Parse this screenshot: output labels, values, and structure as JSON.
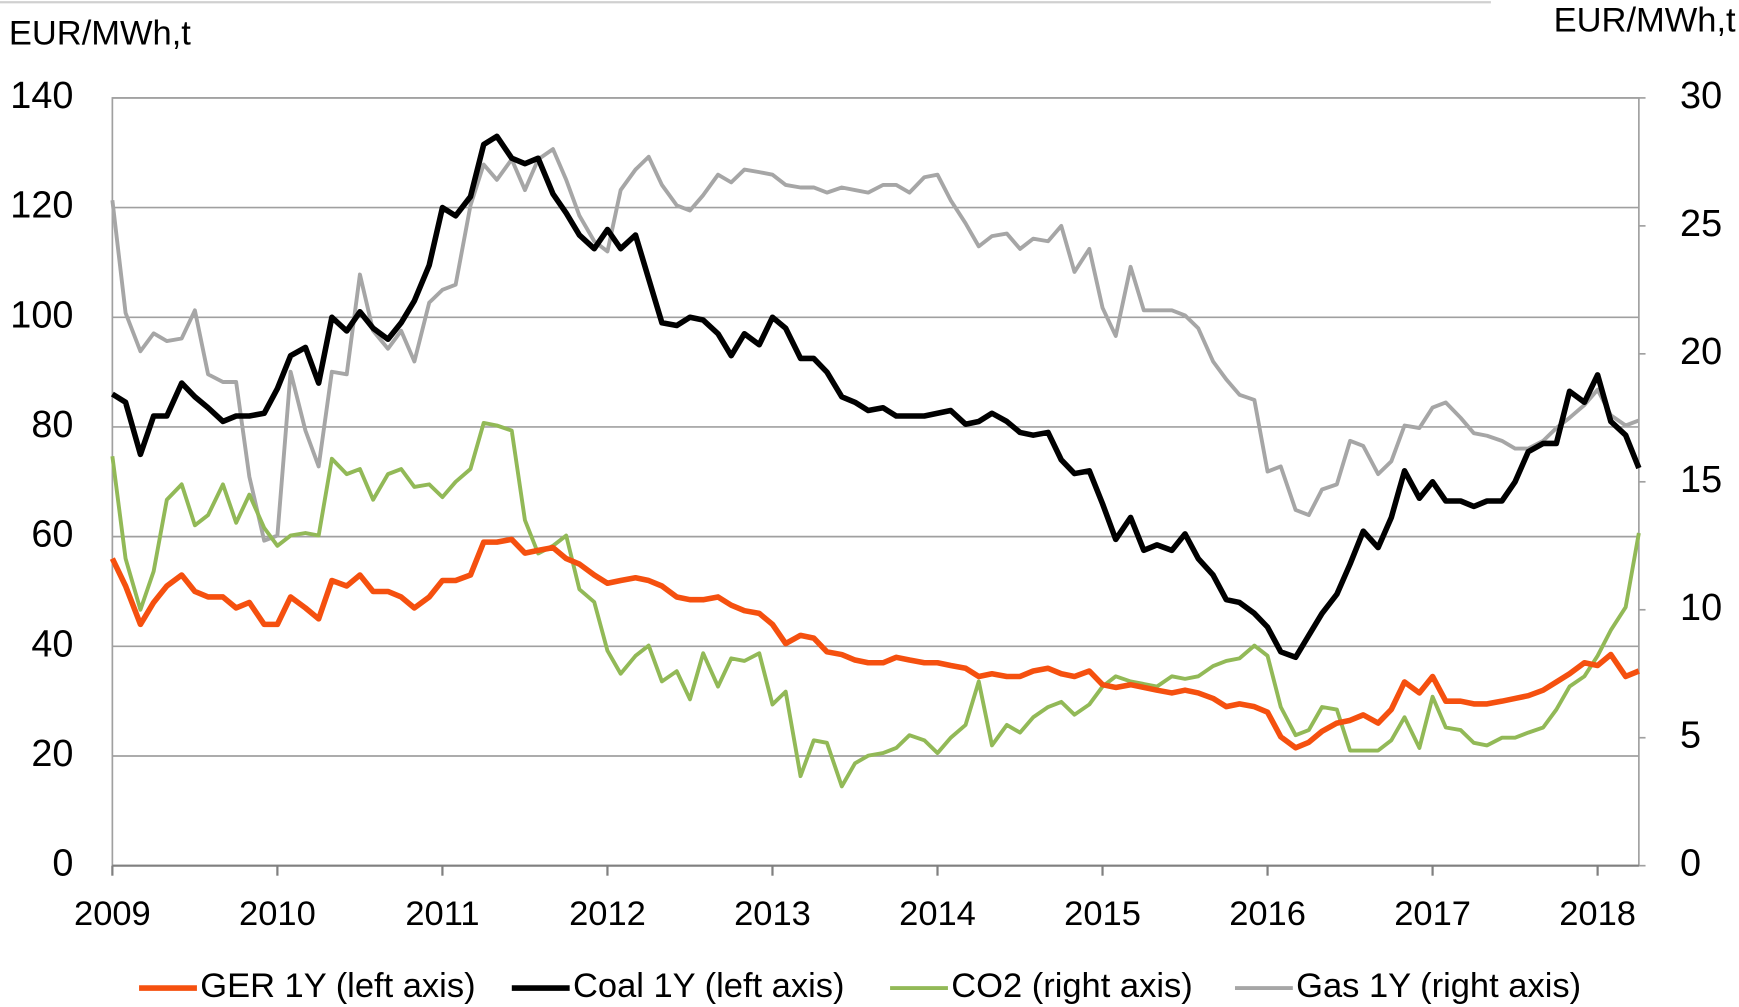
{
  "chart_data": {
    "type": "line",
    "ylabel": "EUR/MWh,t",
    "y2label": "EUR/MWh,t",
    "x": [
      2009,
      2009.08,
      2009.17,
      2009.25,
      2009.33,
      2009.42,
      2009.5,
      2009.58,
      2009.67,
      2009.75,
      2009.83,
      2009.92,
      2010,
      2010.08,
      2010.17,
      2010.25,
      2010.33,
      2010.42,
      2010.5,
      2010.58,
      2010.67,
      2010.75,
      2010.83,
      2010.92,
      2011,
      2011.08,
      2011.17,
      2011.25,
      2011.33,
      2011.42,
      2011.5,
      2011.58,
      2011.67,
      2011.75,
      2011.83,
      2011.92,
      2012,
      2012.08,
      2012.17,
      2012.25,
      2012.33,
      2012.42,
      2012.5,
      2012.58,
      2012.67,
      2012.75,
      2012.83,
      2012.92,
      2013,
      2013.08,
      2013.17,
      2013.25,
      2013.33,
      2013.42,
      2013.5,
      2013.58,
      2013.67,
      2013.75,
      2013.83,
      2013.92,
      2014,
      2014.08,
      2014.17,
      2014.25,
      2014.33,
      2014.42,
      2014.5,
      2014.58,
      2014.67,
      2014.75,
      2014.83,
      2014.92,
      2015,
      2015.08,
      2015.17,
      2015.25,
      2015.33,
      2015.42,
      2015.5,
      2015.58,
      2015.67,
      2015.75,
      2015.83,
      2015.92,
      2016,
      2016.08,
      2016.17,
      2016.25,
      2016.33,
      2016.42,
      2016.5,
      2016.58,
      2016.67,
      2016.75,
      2016.83,
      2016.92,
      2017,
      2017.08,
      2017.17,
      2017.25,
      2017.33,
      2017.42,
      2017.5,
      2017.58,
      2017.67,
      2017.75,
      2017.83,
      2017.92,
      2018,
      2018.08,
      2018.17,
      2018.25
    ],
    "xlim": [
      2009,
      2018.25
    ],
    "xticks": [
      2009,
      2010,
      2011,
      2012,
      2013,
      2014,
      2015,
      2016,
      2017,
      2018
    ],
    "ylim": [
      0,
      140
    ],
    "yticks": [
      0,
      20,
      40,
      60,
      80,
      100,
      120,
      140
    ],
    "y2lim": [
      0,
      30
    ],
    "y2ticks": [
      0,
      5,
      10,
      15,
      20,
      25,
      30
    ],
    "grid": true,
    "legend": "bottom",
    "series": [
      {
        "name": "GER 1Y (left axis)",
        "color": "#f5500f",
        "axis": "y",
        "values": [
          56,
          51,
          44,
          48,
          51,
          53,
          50,
          49,
          49,
          47,
          48,
          44,
          44,
          49,
          47,
          45,
          52,
          51,
          53,
          50,
          50,
          49,
          47,
          49,
          52,
          52,
          53,
          59,
          59,
          59.5,
          57,
          57.5,
          58,
          56,
          55,
          53,
          51.5,
          52,
          52.5,
          52,
          51,
          49,
          48.5,
          48.5,
          49,
          47.5,
          46.5,
          46,
          44,
          40.5,
          42,
          41.5,
          39,
          38.5,
          37.5,
          37,
          37,
          38,
          37.5,
          37,
          37,
          36.5,
          36,
          34.5,
          35,
          34.5,
          34.5,
          35.5,
          36,
          35,
          34.5,
          35.5,
          33,
          32.5,
          33,
          32.5,
          32,
          31.5,
          32,
          31.5,
          30.5,
          29,
          29.5,
          29,
          28,
          23.5,
          21.5,
          22.5,
          24.5,
          26,
          26.5,
          27.5,
          26,
          28.5,
          33.5,
          31.5,
          34.5,
          30,
          30,
          29.5,
          29.5,
          30,
          30.5,
          31,
          32,
          33.5,
          35,
          37,
          36.5,
          38.5,
          34.5,
          35.5
        ]
      },
      {
        "name": "Coal 1Y (left axis)",
        "color": "#000000",
        "axis": "y",
        "values": [
          86,
          84.5,
          75,
          82,
          82,
          88,
          85.5,
          83.5,
          81,
          82,
          82,
          82.5,
          87,
          93,
          94.5,
          88,
          100,
          97.5,
          101,
          98,
          96,
          99,
          103,
          109.5,
          120,
          118.5,
          122,
          131.5,
          133,
          129,
          128,
          129,
          122.5,
          119,
          115,
          112.5,
          116,
          112.5,
          115,
          107,
          99,
          98.5,
          100,
          99.5,
          97,
          93,
          97,
          95,
          100,
          98,
          92.5,
          92.5,
          90,
          85.5,
          84.5,
          83,
          83.5,
          82,
          82,
          82,
          82.5,
          83,
          80.5,
          81,
          82.5,
          81,
          79,
          78.5,
          79,
          74,
          71.5,
          72,
          66,
          59.5,
          63.5,
          57.5,
          58.5,
          57.5,
          60.5,
          56,
          53,
          48.5,
          48,
          46,
          43.5,
          39,
          38,
          42,
          46,
          49.5,
          55,
          61,
          58,
          63.5,
          72,
          67,
          70,
          66.5,
          66.5,
          65.5,
          66.5,
          66.5,
          70,
          75.5,
          77,
          77,
          86.5,
          84.5,
          89.5,
          81,
          78.5,
          72.5
        ]
      },
      {
        "name": "CO2 (right axis)",
        "color": "#92b957",
        "axis": "y2",
        "values": [
          16,
          12,
          10,
          11.5,
          14.3,
          14.9,
          13.3,
          13.7,
          14.9,
          13.4,
          14.5,
          13.2,
          12.5,
          12.9,
          13.0,
          12.9,
          15.9,
          15.3,
          15.5,
          14.3,
          15.3,
          15.5,
          14.8,
          14.9,
          14.4,
          15.0,
          15.5,
          17.3,
          17.2,
          17.0,
          13.5,
          12.2,
          12.5,
          12.9,
          10.8,
          10.3,
          8.4,
          7.5,
          8.2,
          8.6,
          7.2,
          7.6,
          6.5,
          8.3,
          7.0,
          8.1,
          8.0,
          8.3,
          6.3,
          6.8,
          3.5,
          4.9,
          4.8,
          3.1,
          4.0,
          4.3,
          4.4,
          4.6,
          5.1,
          4.9,
          4.4,
          5.0,
          5.5,
          7.2,
          4.7,
          5.5,
          5.2,
          5.8,
          6.2,
          6.4,
          5.9,
          6.3,
          7.0,
          7.4,
          7.2,
          7.1,
          7.0,
          7.4,
          7.3,
          7.4,
          7.8,
          8.0,
          8.1,
          8.6,
          8.2,
          6.2,
          5.1,
          5.3,
          6.2,
          6.1,
          4.5,
          4.5,
          4.5,
          4.9,
          5.8,
          4.6,
          6.6,
          5.4,
          5.3,
          4.8,
          4.7,
          5.0,
          5.0,
          5.2,
          5.4,
          6.1,
          7.0,
          7.4,
          8.2,
          9.2,
          10.1,
          13.0
        ]
      },
      {
        "name": "Gas 1Y (right axis)",
        "color": "#a6a6a6",
        "axis": "y2",
        "values": [
          26.0,
          21.6,
          20.1,
          20.8,
          20.5,
          20.6,
          21.7,
          19.2,
          18.9,
          18.9,
          15.2,
          12.7,
          12.9,
          19.3,
          17.0,
          15.6,
          19.3,
          19.2,
          23.1,
          20.9,
          20.2,
          20.9,
          19.7,
          22.0,
          22.5,
          22.7,
          25.8,
          27.4,
          26.8,
          27.6,
          26.4,
          27.6,
          28.0,
          26.8,
          25.4,
          24.4,
          24.0,
          26.4,
          27.2,
          27.7,
          26.6,
          25.8,
          25.6,
          26.2,
          27.0,
          26.7,
          27.2,
          27.1,
          27.0,
          26.6,
          26.5,
          26.5,
          26.3,
          26.5,
          26.4,
          26.3,
          26.6,
          26.6,
          26.3,
          26.9,
          27.0,
          26.0,
          25.1,
          24.2,
          24.6,
          24.7,
          24.1,
          24.5,
          24.4,
          25.0,
          23.2,
          24.1,
          21.8,
          20.7,
          23.4,
          21.7,
          21.7,
          21.7,
          21.5,
          21.0,
          19.7,
          19.0,
          18.4,
          18.2,
          15.4,
          15.6,
          13.9,
          13.7,
          14.7,
          14.9,
          16.6,
          16.4,
          15.3,
          15.8,
          17.2,
          17.1,
          17.9,
          18.1,
          17.5,
          16.9,
          16.8,
          16.6,
          16.3,
          16.3,
          16.6,
          17.1,
          17.5,
          18.0,
          18.6,
          17.6,
          17.2,
          17.4
        ]
      }
    ]
  }
}
